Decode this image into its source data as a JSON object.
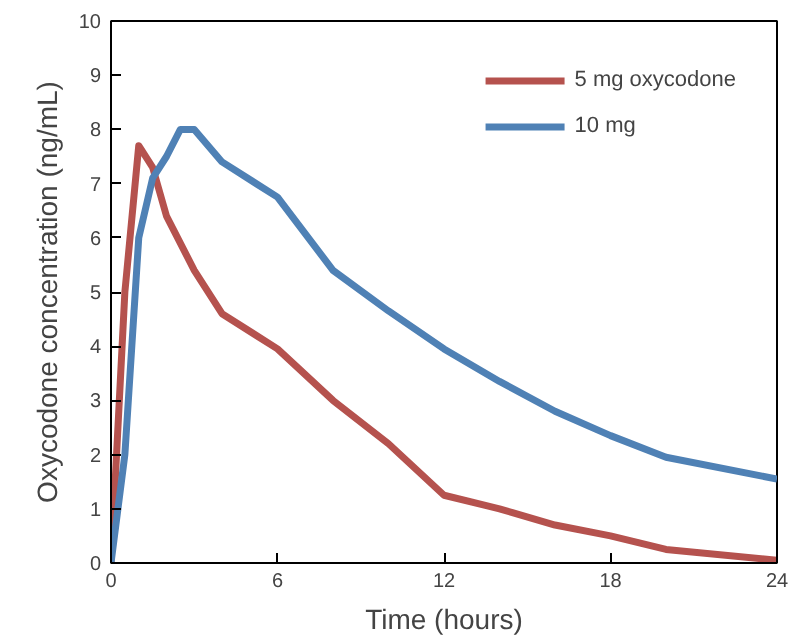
{
  "chart_data": {
    "type": "line",
    "xlabel": "Time (hours)",
    "ylabel": "Oxycodone concentration (ng/mL)",
    "xlim": [
      0,
      24
    ],
    "xticks": [
      0,
      6,
      12,
      18,
      24
    ],
    "ylim": [
      0,
      10
    ],
    "yticks": [
      0,
      1,
      2,
      3,
      4,
      5,
      6,
      7,
      8,
      9,
      10
    ],
    "grid": false,
    "legend": "top right",
    "marker": "none",
    "line_style": "solid",
    "series": [
      {
        "name": "5 mg oxycodone",
        "color": "#b5524e",
        "x": [
          0,
          0.5,
          1,
          1.5,
          2,
          3,
          4,
          6,
          8,
          10,
          12,
          14,
          16,
          18,
          20,
          24
        ],
        "values": [
          0,
          5,
          7.7,
          7.3,
          6.4,
          5.4,
          4.6,
          3.95,
          3.0,
          2.2,
          1.25,
          1.0,
          0.7,
          0.5,
          0.25,
          0.05
        ]
      },
      {
        "name": "10 mg",
        "color": "#4f81b5",
        "x": [
          0,
          0.5,
          1,
          1.5,
          2,
          2.5,
          3,
          4,
          6,
          8,
          10,
          12,
          14,
          16,
          18,
          20,
          24
        ],
        "values": [
          0,
          2,
          6,
          7.1,
          7.5,
          8,
          8,
          7.4,
          6.75,
          5.4,
          4.65,
          3.95,
          3.35,
          2.8,
          2.35,
          1.95,
          1.55
        ]
      }
    ]
  }
}
